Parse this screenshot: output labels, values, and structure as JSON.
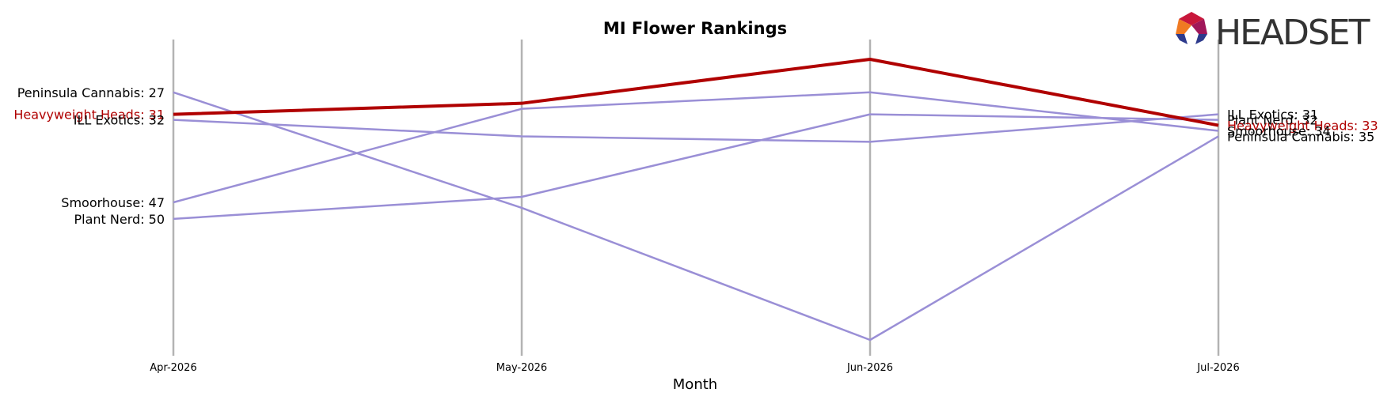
{
  "brand": {
    "name": "HEADSET"
  },
  "chart_data": {
    "type": "line",
    "title": "MI Flower Rankings",
    "xlabel": "Month",
    "ylabel": "",
    "x": [
      "Apr-2026",
      "May-2026",
      "Jun-2026",
      "Jul-2026"
    ],
    "ylim": [
      72,
      15
    ],
    "y_inverted": true,
    "grid": "vertical",
    "legend": "none",
    "highlight_color": "#b00000",
    "other_color": "#9a8fd6",
    "axis_color": "#b3b3b3",
    "series": [
      {
        "name": "Heavyweight Heads",
        "values": [
          31,
          29,
          21,
          33
        ],
        "highlight": true,
        "start_label": "Heavyweight Heads: 31",
        "end_label": "Heavyweight Heads: 33"
      },
      {
        "name": "ILL Exotics",
        "values": [
          32,
          35,
          36,
          31
        ],
        "highlight": false,
        "start_label": "ILL Exotics: 32",
        "end_label": "ILL Exotics: 31"
      },
      {
        "name": "Peninsula Cannabis",
        "values": [
          27,
          48,
          72,
          35
        ],
        "highlight": false,
        "start_label": "Peninsula Cannabis: 27",
        "end_label": "Peninsula Cannabis: 35"
      },
      {
        "name": "Smoorhouse",
        "values": [
          47,
          30,
          27,
          34
        ],
        "highlight": false,
        "start_label": "Smoorhouse: 47",
        "end_label": "Smoorhouse: 34"
      },
      {
        "name": "Plant Nerd",
        "values": [
          50,
          46,
          31,
          32
        ],
        "highlight": false,
        "start_label": "Plant Nerd: 50",
        "end_label": "Plant Nerd: 32"
      }
    ]
  }
}
